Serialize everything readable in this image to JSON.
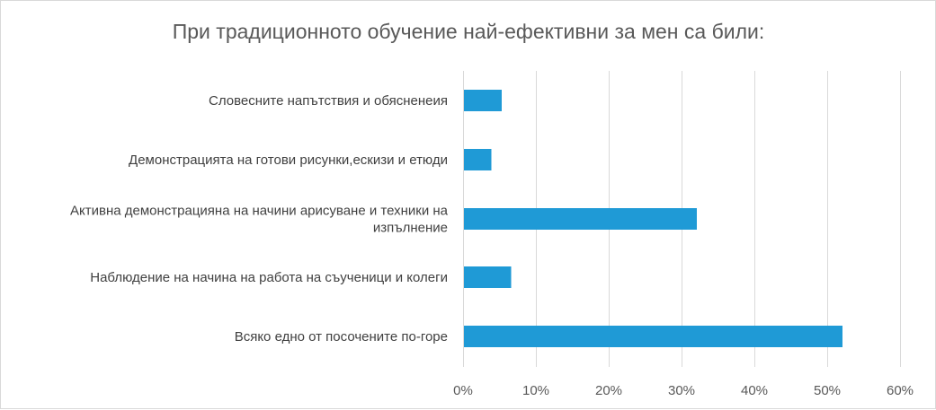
{
  "chart_data": {
    "type": "bar",
    "orientation": "horizontal",
    "title": "При традиционното обучение най-ефективни за мен са били:",
    "categories": [
      "Словесните напътствия и обясненеия",
      "Демонстрацията на готови рисунки,ескизи и етюди",
      "Активна демонстрацияна на начини арисуване и техники на изпълнение",
      "Наблюдение на начина на работа на съученици и колеги",
      "Всяко едно от посочените по-горе"
    ],
    "values": [
      5.3,
      3.9,
      32.1,
      6.6,
      52.1
    ],
    "value_unit": "%",
    "xlim": [
      0,
      60
    ],
    "x_ticks": [
      "0%",
      "10%",
      "20%",
      "30%",
      "40%",
      "50%",
      "60%"
    ],
    "xlabel": "",
    "ylabel": "",
    "grid": "vertical",
    "legend": "none",
    "bar_color": "#1f9ad6"
  }
}
